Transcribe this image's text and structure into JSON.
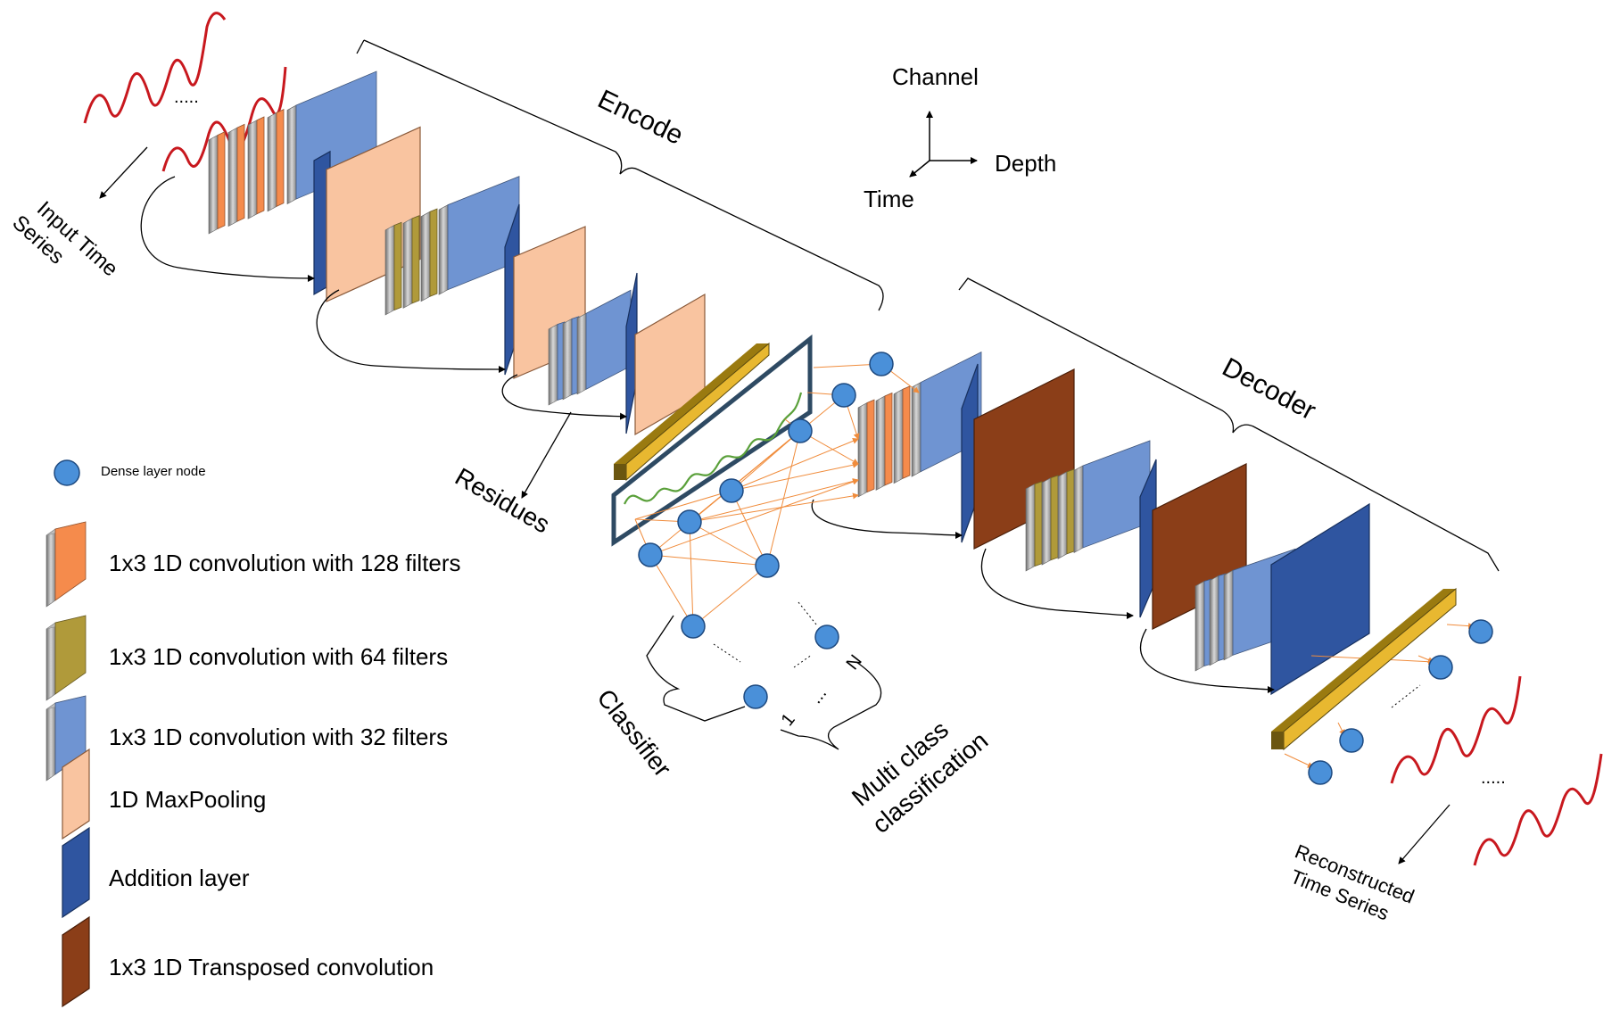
{
  "labels": {
    "input": [
      "Input Time",
      "Series"
    ],
    "encode": "Encode",
    "decoder": "Decoder",
    "residues": "Residues",
    "classifier": "Classifier",
    "multiclass": [
      "Multi class",
      "classification"
    ],
    "reconstructed": [
      "Reconstructed",
      "Time Series"
    ],
    "axes": {
      "channel": "Channel",
      "depth": "Depth",
      "time": "Time"
    },
    "ellipsis": ".....",
    "class_first": "1",
    "class_dots": "...",
    "class_last": "N"
  },
  "legend": {
    "dense_node": "Dense layer node",
    "items": [
      {
        "id": "conv128",
        "label": "1x3 1D convolution with 128 filters",
        "color": "#F58B4C"
      },
      {
        "id": "conv64",
        "label": "1x3 1D convolution with 64 filters",
        "color": "#B09A3A"
      },
      {
        "id": "conv32",
        "label": "1x3 1D convolution with 32 filters",
        "color": "#6F94D2"
      },
      {
        "id": "maxpool",
        "label": "1D MaxPooling",
        "color": "#F9C4A0"
      },
      {
        "id": "addition",
        "label": "Addition layer",
        "color": "#2F55A0"
      },
      {
        "id": "transposed",
        "label": "1x3 1D Transposed convolution",
        "color": "#8B3E18"
      }
    ]
  },
  "colors": {
    "signal": "#C8181E",
    "dense_node": "#4A90D9",
    "orange_arrow": "#F08C3C",
    "latent": "#E8B830",
    "bottleneck_box": "#2E4A63",
    "green_signal": "#5AA03A"
  }
}
